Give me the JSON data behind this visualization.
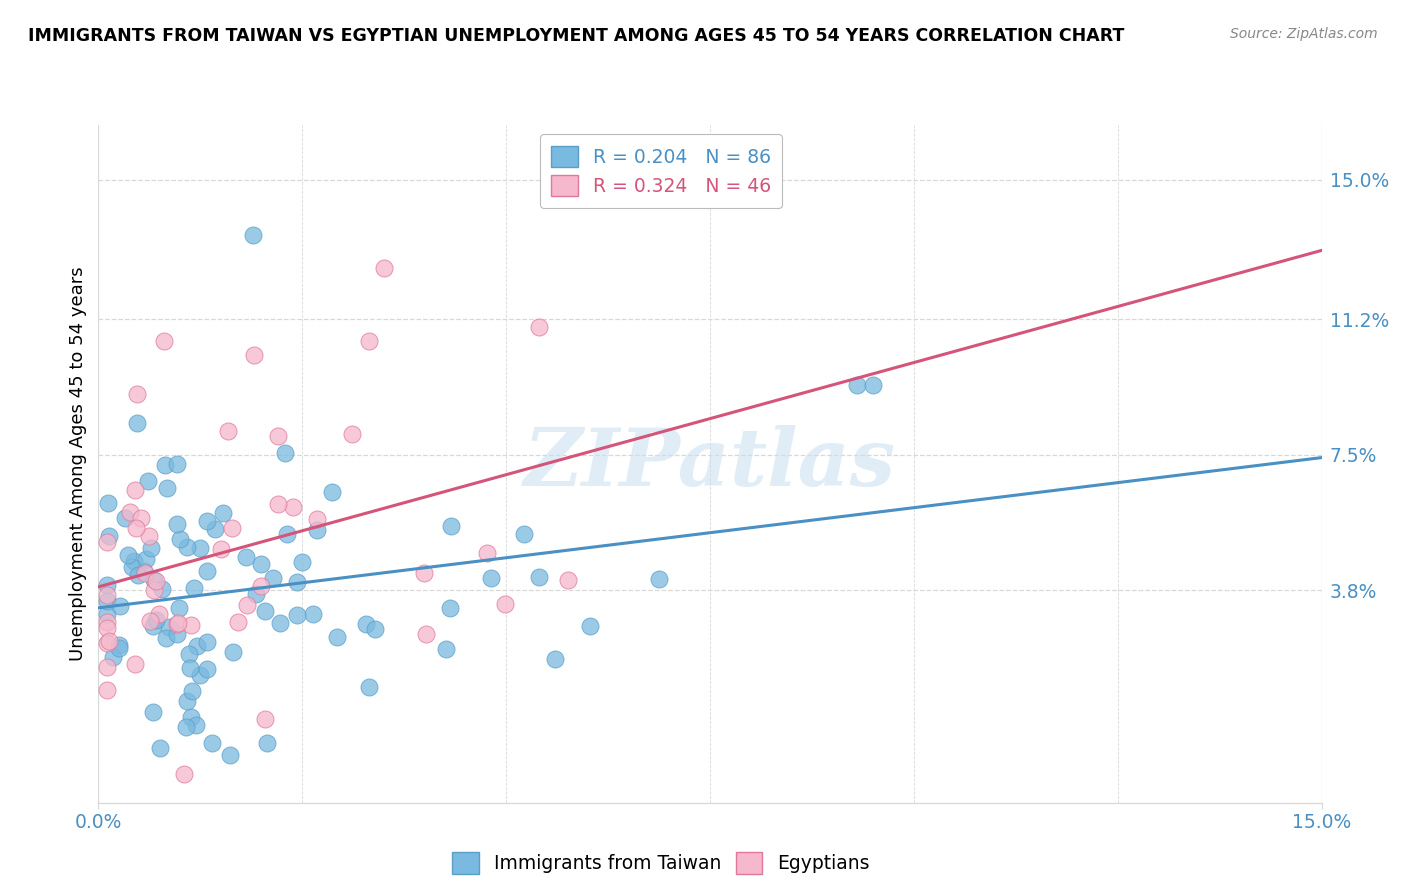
{
  "title": "IMMIGRANTS FROM TAIWAN VS EGYPTIAN UNEMPLOYMENT AMONG AGES 45 TO 54 YEARS CORRELATION CHART",
  "source": "Source: ZipAtlas.com",
  "ylabel": "Unemployment Among Ages 45 to 54 years",
  "xlim": [
    0.0,
    0.15
  ],
  "ylim": [
    -0.02,
    0.165
  ],
  "ytick_vals": [
    0.038,
    0.075,
    0.112,
    0.15
  ],
  "ytick_labels": [
    "3.8%",
    "7.5%",
    "11.2%",
    "15.0%"
  ],
  "xtick_vals": [
    0.0,
    0.15
  ],
  "xtick_labels": [
    "0.0%",
    "15.0%"
  ],
  "taiwan_R": 0.204,
  "taiwan_N": 86,
  "egypt_R": 0.324,
  "egypt_N": 46,
  "taiwan_color": "#7ab9e0",
  "taiwan_edge_color": "#5a9fc8",
  "egypt_color": "#f5b8cc",
  "egypt_edge_color": "#e07898",
  "taiwan_line_color": "#4a90c4",
  "egypt_line_color": "#d4547a",
  "tick_color": "#4a90c4",
  "legend_taiwan_label": "Immigrants from Taiwan",
  "legend_egypt_label": "Egyptians",
  "watermark": "ZIPatlas",
  "grid_color": "#d8d8d8"
}
